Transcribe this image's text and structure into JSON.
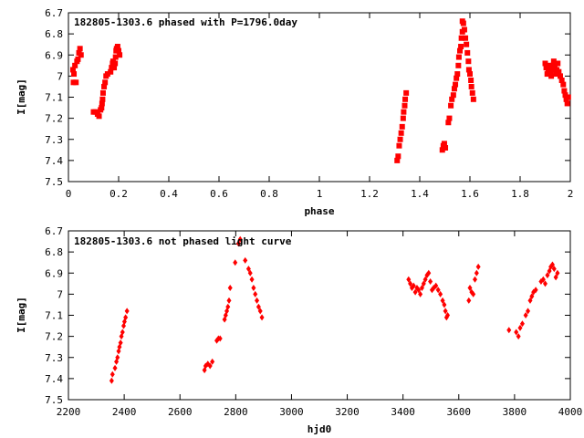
{
  "chart_data": [
    {
      "type": "scatter",
      "title": "182805-1303.6 phased with P=1796.0day",
      "xlabel": "phase",
      "ylabel": "I[mag]",
      "xlim": [
        0,
        2
      ],
      "ylim": [
        7.5,
        6.7
      ],
      "y_inverted": true,
      "grid": false,
      "marker_color": "#ff0000",
      "marker": "square",
      "xticks": [
        0,
        0.2,
        0.4,
        0.6,
        0.8,
        1,
        1.2,
        1.4,
        1.6,
        1.8,
        2
      ],
      "xtick_labels": [
        "0",
        "0.2",
        "0.4",
        "0.6",
        "0.8",
        "1",
        "1.2",
        "1.4",
        "1.6",
        "1.8",
        "2"
      ],
      "yticks": [
        6.7,
        6.8,
        6.9,
        7.0,
        7.1,
        7.2,
        7.3,
        7.4,
        7.5
      ],
      "ytick_labels": [
        "6.7",
        "6.8",
        "6.9",
        "7",
        "7.1",
        "7.2",
        "7.3",
        "7.4",
        "7.5"
      ],
      "points": [
        [
          0.018,
          6.97
        ],
        [
          0.02,
          7.03
        ],
        [
          0.022,
          6.99
        ],
        [
          0.026,
          6.95
        ],
        [
          0.03,
          7.03
        ],
        [
          0.034,
          6.93
        ],
        [
          0.038,
          6.92
        ],
        [
          0.042,
          6.89
        ],
        [
          0.046,
          6.87
        ],
        [
          0.05,
          6.9
        ],
        [
          0.1,
          7.17
        ],
        [
          0.108,
          7.17
        ],
        [
          0.116,
          7.18
        ],
        [
          0.122,
          7.19
        ],
        [
          0.128,
          7.16
        ],
        [
          0.132,
          7.15
        ],
        [
          0.134,
          7.13
        ],
        [
          0.136,
          7.11
        ],
        [
          0.138,
          7.08
        ],
        [
          0.142,
          7.05
        ],
        [
          0.146,
          7.03
        ],
        [
          0.15,
          7.0
        ],
        [
          0.156,
          6.99
        ],
        [
          0.168,
          6.98
        ],
        [
          0.172,
          6.96
        ],
        [
          0.176,
          6.94
        ],
        [
          0.178,
          6.93
        ],
        [
          0.182,
          6.96
        ],
        [
          0.186,
          6.94
        ],
        [
          0.188,
          6.91
        ],
        [
          0.19,
          6.88
        ],
        [
          0.192,
          6.87
        ],
        [
          0.196,
          6.86
        ],
        [
          0.2,
          6.88
        ],
        [
          0.204,
          6.9
        ],
        [
          1.31,
          7.4
        ],
        [
          1.314,
          7.38
        ],
        [
          1.318,
          7.33
        ],
        [
          1.322,
          7.3
        ],
        [
          1.326,
          7.27
        ],
        [
          1.33,
          7.24
        ],
        [
          1.334,
          7.2
        ],
        [
          1.336,
          7.17
        ],
        [
          1.34,
          7.14
        ],
        [
          1.342,
          7.11
        ],
        [
          1.346,
          7.08
        ],
        [
          1.49,
          7.35
        ],
        [
          1.494,
          7.33
        ],
        [
          1.498,
          7.32
        ],
        [
          1.502,
          7.34
        ],
        [
          1.514,
          7.22
        ],
        [
          1.518,
          7.2
        ],
        [
          1.524,
          7.14
        ],
        [
          1.528,
          7.11
        ],
        [
          1.534,
          7.09
        ],
        [
          1.538,
          7.06
        ],
        [
          1.542,
          7.04
        ],
        [
          1.546,
          7.01
        ],
        [
          1.55,
          6.99
        ],
        [
          1.554,
          6.95
        ],
        [
          1.556,
          6.91
        ],
        [
          1.56,
          6.88
        ],
        [
          1.564,
          6.86
        ],
        [
          1.566,
          6.82
        ],
        [
          1.57,
          6.79
        ],
        [
          1.57,
          6.74
        ],
        [
          1.574,
          6.75
        ],
        [
          1.578,
          6.78
        ],
        [
          1.582,
          6.82
        ],
        [
          1.586,
          6.85
        ],
        [
          1.59,
          6.89
        ],
        [
          1.594,
          6.93
        ],
        [
          1.596,
          6.97
        ],
        [
          1.6,
          6.99
        ],
        [
          1.604,
          7.02
        ],
        [
          1.606,
          7.05
        ],
        [
          1.61,
          7.08
        ],
        [
          1.614,
          7.11
        ],
        [
          1.9,
          6.94
        ],
        [
          1.904,
          6.96
        ],
        [
          1.908,
          6.99
        ],
        [
          1.912,
          6.97
        ],
        [
          1.916,
          6.95
        ],
        [
          1.92,
          6.98
        ],
        [
          1.924,
          7.0
        ],
        [
          1.928,
          6.97
        ],
        [
          1.93,
          6.95
        ],
        [
          1.934,
          6.93
        ],
        [
          1.938,
          6.96
        ],
        [
          1.942,
          6.99
        ],
        [
          1.946,
          6.97
        ],
        [
          1.95,
          6.94
        ],
        [
          1.954,
          6.98
        ],
        [
          1.96,
          7.0
        ],
        [
          1.966,
          7.02
        ],
        [
          1.972,
          7.04
        ],
        [
          1.976,
          7.07
        ],
        [
          1.98,
          7.09
        ],
        [
          1.984,
          7.11
        ],
        [
          1.988,
          7.13
        ],
        [
          1.992,
          7.1
        ]
      ]
    },
    {
      "type": "scatter",
      "title": "182805-1303.6 not phased light curve",
      "xlabel": "hjd0",
      "ylabel": "I[mag]",
      "xlim": [
        2200,
        4000
      ],
      "ylim": [
        7.5,
        6.7
      ],
      "y_inverted": true,
      "grid": false,
      "marker_color": "#ff0000",
      "marker": "diamond",
      "xticks": [
        2200,
        2400,
        2600,
        2800,
        3000,
        3200,
        3400,
        3600,
        3800,
        4000
      ],
      "xtick_labels": [
        "2200",
        "2400",
        "2600",
        "2800",
        "3000",
        "3200",
        "3400",
        "3600",
        "3800",
        "4000"
      ],
      "yticks": [
        6.7,
        6.8,
        6.9,
        7.0,
        7.1,
        7.2,
        7.3,
        7.4,
        7.5
      ],
      "ytick_labels": [
        "6.7",
        "6.8",
        "6.9",
        "7",
        "7.1",
        "7.2",
        "7.3",
        "7.4",
        "7.5"
      ],
      "points": [
        [
          2355,
          7.41
        ],
        [
          2358,
          7.38
        ],
        [
          2367,
          7.35
        ],
        [
          2372,
          7.32
        ],
        [
          2376,
          7.3
        ],
        [
          2380,
          7.27
        ],
        [
          2383,
          7.25
        ],
        [
          2387,
          7.23
        ],
        [
          2390,
          7.2
        ],
        [
          2394,
          7.18
        ],
        [
          2398,
          7.15
        ],
        [
          2401,
          7.13
        ],
        [
          2405,
          7.11
        ],
        [
          2410,
          7.08
        ],
        [
          2688,
          7.36
        ],
        [
          2692,
          7.34
        ],
        [
          2700,
          7.33
        ],
        [
          2708,
          7.34
        ],
        [
          2716,
          7.32
        ],
        [
          2732,
          7.22
        ],
        [
          2738,
          7.21
        ],
        [
          2744,
          7.21
        ],
        [
          2760,
          7.12
        ],
        [
          2764,
          7.1
        ],
        [
          2768,
          7.08
        ],
        [
          2772,
          7.06
        ],
        [
          2776,
          7.03
        ],
        [
          2780,
          6.97
        ],
        [
          2798,
          6.85
        ],
        [
          2810,
          6.76
        ],
        [
          2816,
          6.74
        ],
        [
          2834,
          6.84
        ],
        [
          2846,
          6.88
        ],
        [
          2852,
          6.9
        ],
        [
          2858,
          6.93
        ],
        [
          2864,
          6.97
        ],
        [
          2870,
          7.0
        ],
        [
          2876,
          7.03
        ],
        [
          2882,
          7.06
        ],
        [
          2888,
          7.08
        ],
        [
          2894,
          7.11
        ],
        [
          3420,
          6.93
        ],
        [
          3426,
          6.95
        ],
        [
          3432,
          6.97
        ],
        [
          3438,
          6.96
        ],
        [
          3444,
          6.99
        ],
        [
          3450,
          6.97
        ],
        [
          3456,
          6.98
        ],
        [
          3462,
          7.0
        ],
        [
          3468,
          6.97
        ],
        [
          3474,
          6.95
        ],
        [
          3480,
          6.93
        ],
        [
          3486,
          6.91
        ],
        [
          3492,
          6.9
        ],
        [
          3498,
          6.94
        ],
        [
          3504,
          6.98
        ],
        [
          3510,
          6.97
        ],
        [
          3518,
          6.96
        ],
        [
          3526,
          6.98
        ],
        [
          3534,
          7.0
        ],
        [
          3542,
          7.03
        ],
        [
          3548,
          7.05
        ],
        [
          3552,
          7.08
        ],
        [
          3556,
          7.11
        ],
        [
          3560,
          7.1
        ],
        [
          3636,
          7.03
        ],
        [
          3640,
          6.97
        ],
        [
          3646,
          6.99
        ],
        [
          3652,
          7.0
        ],
        [
          3658,
          6.93
        ],
        [
          3664,
          6.9
        ],
        [
          3670,
          6.87
        ],
        [
          3780,
          7.17
        ],
        [
          3806,
          7.18
        ],
        [
          3814,
          7.2
        ],
        [
          3820,
          7.16
        ],
        [
          3828,
          7.14
        ],
        [
          3840,
          7.1
        ],
        [
          3848,
          7.08
        ],
        [
          3856,
          7.03
        ],
        [
          3862,
          7.01
        ],
        [
          3868,
          6.99
        ],
        [
          3876,
          6.98
        ],
        [
          3895,
          6.94
        ],
        [
          3903,
          6.93
        ],
        [
          3910,
          6.95
        ],
        [
          3918,
          6.91
        ],
        [
          3925,
          6.89
        ],
        [
          3930,
          6.87
        ],
        [
          3936,
          6.86
        ],
        [
          3942,
          6.88
        ],
        [
          3948,
          6.92
        ],
        [
          3954,
          6.9
        ]
      ]
    }
  ]
}
